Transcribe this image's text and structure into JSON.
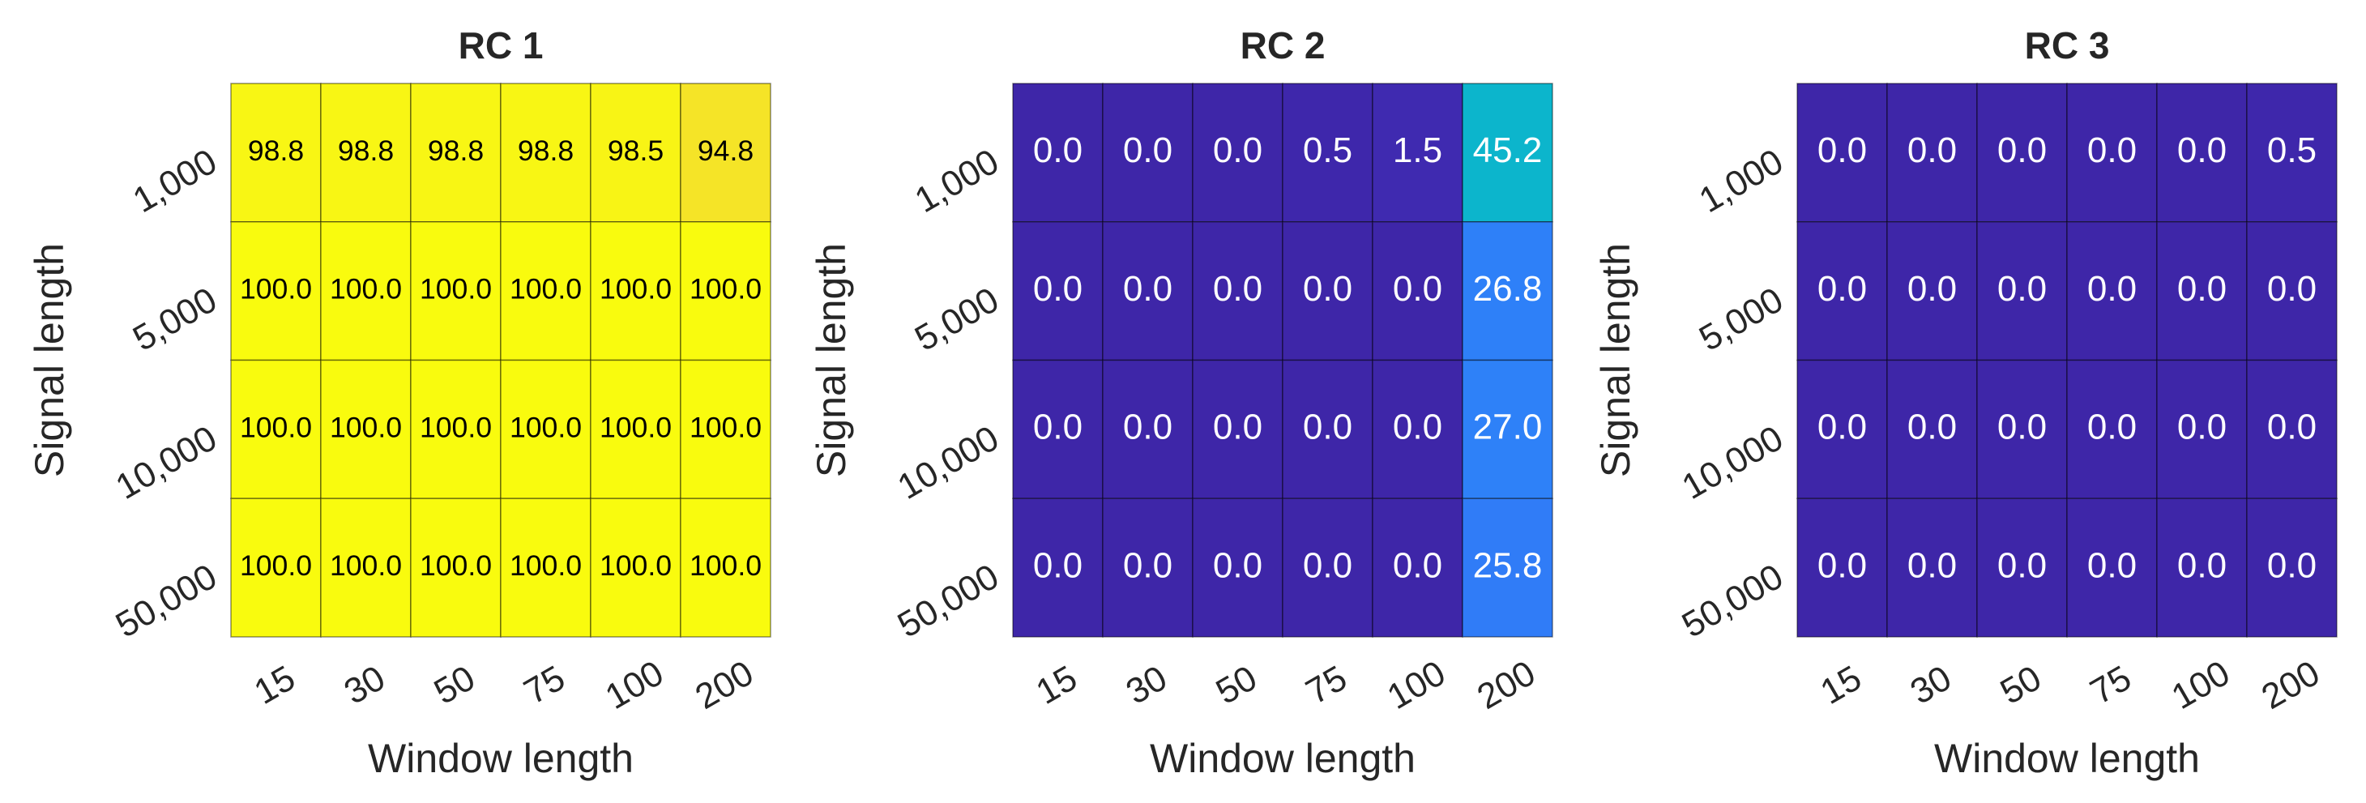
{
  "chart_data": [
    {
      "type": "heatmap",
      "title": "RC 1",
      "xlabel": "Window length",
      "ylabel": "Signal length",
      "x_categories": [
        "15",
        "30",
        "50",
        "75",
        "100",
        "200"
      ],
      "y_categories": [
        "1,000",
        "5,000",
        "10,000",
        "50,000"
      ],
      "colormap": "parula",
      "clim": [
        0,
        100
      ],
      "values": [
        [
          98.8,
          98.8,
          98.8,
          98.8,
          98.5,
          94.8
        ],
        [
          100,
          100,
          100,
          100,
          100,
          100
        ],
        [
          100,
          100,
          100,
          100,
          100,
          100
        ],
        [
          100,
          100,
          100,
          100,
          100,
          100
        ]
      ],
      "value_labels": [
        [
          "98.8",
          "98.8",
          "98.8",
          "98.8",
          "98.5",
          "94.8"
        ],
        [
          "100.0",
          "100.0",
          "100.0",
          "100.0",
          "100.0",
          "100.0"
        ],
        [
          "100.0",
          "100.0",
          "100.0",
          "100.0",
          "100.0",
          "100.0"
        ],
        [
          "100.0",
          "100.0",
          "100.0",
          "100.0",
          "100.0",
          "100.0"
        ]
      ]
    },
    {
      "type": "heatmap",
      "title": "RC 2",
      "xlabel": "Window length",
      "ylabel": "Signal length",
      "x_categories": [
        "15",
        "30",
        "50",
        "75",
        "100",
        "200"
      ],
      "y_categories": [
        "1,000",
        "5,000",
        "10,000",
        "50,000"
      ],
      "colormap": "parula",
      "clim": [
        0,
        100
      ],
      "values": [
        [
          0,
          0,
          0,
          0.5,
          1.5,
          45.2
        ],
        [
          0,
          0,
          0,
          0,
          0,
          26.8
        ],
        [
          0,
          0,
          0,
          0,
          0,
          27
        ],
        [
          0,
          0,
          0,
          0,
          0,
          25.8
        ]
      ],
      "value_labels": [
        [
          "0.0",
          "0.0",
          "0.0",
          "0.5",
          "1.5",
          "45.2"
        ],
        [
          "0.0",
          "0.0",
          "0.0",
          "0.0",
          "0.0",
          "26.8"
        ],
        [
          "0.0",
          "0.0",
          "0.0",
          "0.0",
          "0.0",
          "27.0"
        ],
        [
          "0.0",
          "0.0",
          "0.0",
          "0.0",
          "0.0",
          "25.8"
        ]
      ]
    },
    {
      "type": "heatmap",
      "title": "RC 3",
      "xlabel": "Window length",
      "ylabel": "Signal length",
      "x_categories": [
        "15",
        "30",
        "50",
        "75",
        "100",
        "200"
      ],
      "y_categories": [
        "1,000",
        "5,000",
        "10,000",
        "50,000"
      ],
      "colormap": "parula",
      "clim": [
        0,
        100
      ],
      "values": [
        [
          0,
          0,
          0,
          0,
          0,
          0.5
        ],
        [
          0,
          0,
          0,
          0,
          0,
          0
        ],
        [
          0,
          0,
          0,
          0,
          0,
          0
        ],
        [
          0,
          0,
          0,
          0,
          0,
          0
        ]
      ],
      "value_labels": [
        [
          "0.0",
          "0.0",
          "0.0",
          "0.0",
          "0.0",
          "0.5"
        ],
        [
          "0.0",
          "0.0",
          "0.0",
          "0.0",
          "0.0",
          "0.0"
        ],
        [
          "0.0",
          "0.0",
          "0.0",
          "0.0",
          "0.0",
          "0.0"
        ],
        [
          "0.0",
          "0.0",
          "0.0",
          "0.0",
          "0.0",
          "0.0"
        ]
      ]
    }
  ]
}
